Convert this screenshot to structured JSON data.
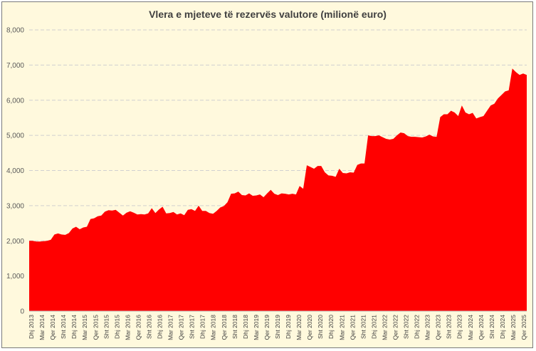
{
  "chart_data": {
    "type": "area",
    "title": "Vlera e mjeteve të rezervës valutore (milionë euro)",
    "xlabel": "",
    "ylabel": "",
    "ylim": [
      0,
      8000
    ],
    "yticks": [
      0,
      1000,
      2000,
      3000,
      4000,
      5000,
      6000,
      7000,
      8000
    ],
    "ytick_labels": [
      "0",
      "1,000",
      "2,000",
      "3,000",
      "4,000",
      "5,000",
      "6,000",
      "7,000",
      "8,000"
    ],
    "grid": true,
    "color": "#ff0000",
    "x_tick_labels": [
      "Dhj 2013",
      "Mar 2014",
      "Qer 2014",
      "Sht 2014",
      "Dhj 2014",
      "Mar 2015",
      "Qer 2015",
      "Sht 2015",
      "Dhj 2015",
      "Mar 2016",
      "Qer 2016",
      "Sht 2016",
      "Dhj 2016",
      "Mar 2017",
      "Qer 2017",
      "Sht 2017",
      "Dhj 2017",
      "Mar 2018",
      "Qer 2018",
      "Sht 2018",
      "Dhj 2018",
      "Mar 2019",
      "Qer 2019",
      "Sht 2019",
      "Dhj 2019",
      "Mar 2020",
      "Qer 2020",
      "Sht 2020",
      "Dhj 2020",
      "Mar 2021",
      "Qer 2021",
      "Sht 2021",
      "Dhj 2021",
      "Mar 2022",
      "Qer 2022",
      "Sht 2022",
      "Dhj 2022",
      "Mar 2023",
      "Qer 2023",
      "Sht 2023",
      "Dhj 2023",
      "Mar 2024",
      "Qer 2024",
      "Sht 2024",
      "Dhj 2024",
      "Mar 2025",
      "Qer 2025"
    ],
    "series": [
      {
        "values": [
          2000,
          2000,
          1980,
          1980,
          1990,
          2000,
          2030,
          2180,
          2210,
          2180,
          2170,
          2220,
          2350,
          2400,
          2330,
          2380,
          2400,
          2620,
          2640,
          2700,
          2720,
          2830,
          2870,
          2860,
          2880,
          2800,
          2720,
          2800,
          2840,
          2800,
          2750,
          2760,
          2750,
          2780,
          2930,
          2790,
          2890,
          2970,
          2780,
          2790,
          2820,
          2750,
          2780,
          2730,
          2880,
          2900,
          2850,
          3000,
          2850,
          2850,
          2790,
          2770,
          2850,
          2950,
          2990,
          3100,
          3340,
          3350,
          3400,
          3300,
          3290,
          3350,
          3280,
          3290,
          3320,
          3240,
          3350,
          3450,
          3340,
          3300,
          3350,
          3340,
          3320,
          3340,
          3320,
          3560,
          3480,
          4150,
          4100,
          4050,
          4130,
          4130,
          3950,
          3860,
          3850,
          3820,
          4050,
          3930,
          3920,
          3950,
          3940,
          4160,
          4200,
          4200,
          5000,
          4980,
          4980,
          5000,
          4950,
          4900,
          4880,
          4900,
          5000,
          5080,
          5060,
          4980,
          4960,
          4960,
          4950,
          4940,
          4970,
          5020,
          4970,
          4960,
          5520,
          5600,
          5600,
          5700,
          5650,
          5550,
          5850,
          5650,
          5600,
          5640,
          5480,
          5520,
          5550,
          5700,
          5850,
          5900,
          6050,
          6150,
          6250,
          6280,
          6900,
          6800,
          6720,
          6760,
          6720
        ]
      }
    ]
  }
}
